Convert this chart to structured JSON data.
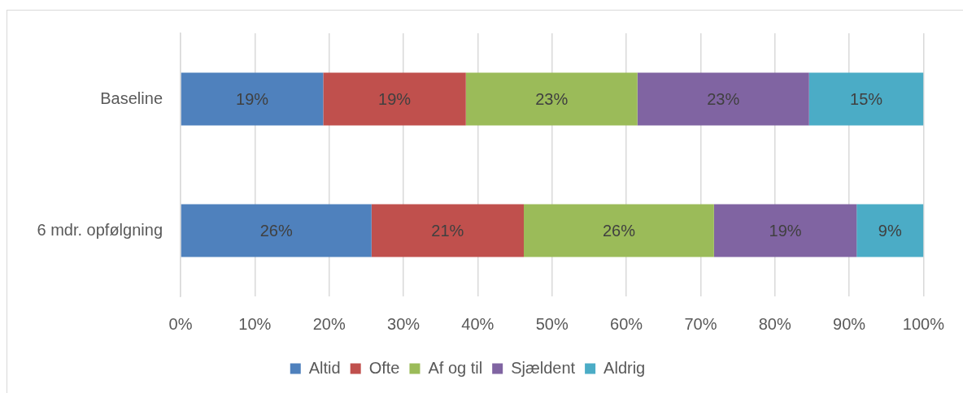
{
  "chart_data": {
    "type": "bar",
    "orientation": "horizontal",
    "stacked": true,
    "categories": [
      "Baseline",
      "6 mdr. opfølgning"
    ],
    "series": [
      {
        "name": "Altid",
        "color": "#4f81bd",
        "values": [
          19.2,
          25.7
        ],
        "value_labels": [
          "19%",
          "26%"
        ]
      },
      {
        "name": "Ofte",
        "color": "#c0504d",
        "values": [
          19.2,
          20.5
        ],
        "value_labels": [
          "19%",
          "21%"
        ]
      },
      {
        "name": "Af og til",
        "color": "#9bbb59",
        "values": [
          23.1,
          25.6
        ],
        "value_labels": [
          "23%",
          "26%"
        ]
      },
      {
        "name": "Sjældent",
        "color": "#8064a2",
        "values": [
          23.1,
          19.2
        ],
        "value_labels": [
          "23%",
          "19%"
        ]
      },
      {
        "name": "Aldrig",
        "color": "#4bacc6",
        "values": [
          15.4,
          9.0
        ],
        "value_labels": [
          "15%",
          "9%"
        ]
      }
    ],
    "xlim": [
      0,
      100
    ],
    "xticks": [
      {
        "value": 0,
        "label": "0%"
      },
      {
        "value": 10,
        "label": "10%"
      },
      {
        "value": 20,
        "label": "20%"
      },
      {
        "value": 30,
        "label": "30%"
      },
      {
        "value": 40,
        "label": "40%"
      },
      {
        "value": 50,
        "label": "50%"
      },
      {
        "value": 60,
        "label": "60%"
      },
      {
        "value": 70,
        "label": "70%"
      },
      {
        "value": 80,
        "label": "80%"
      },
      {
        "value": 90,
        "label": "90%"
      },
      {
        "value": 100,
        "label": "100%"
      }
    ],
    "grid": "x",
    "legend": "bottom"
  }
}
